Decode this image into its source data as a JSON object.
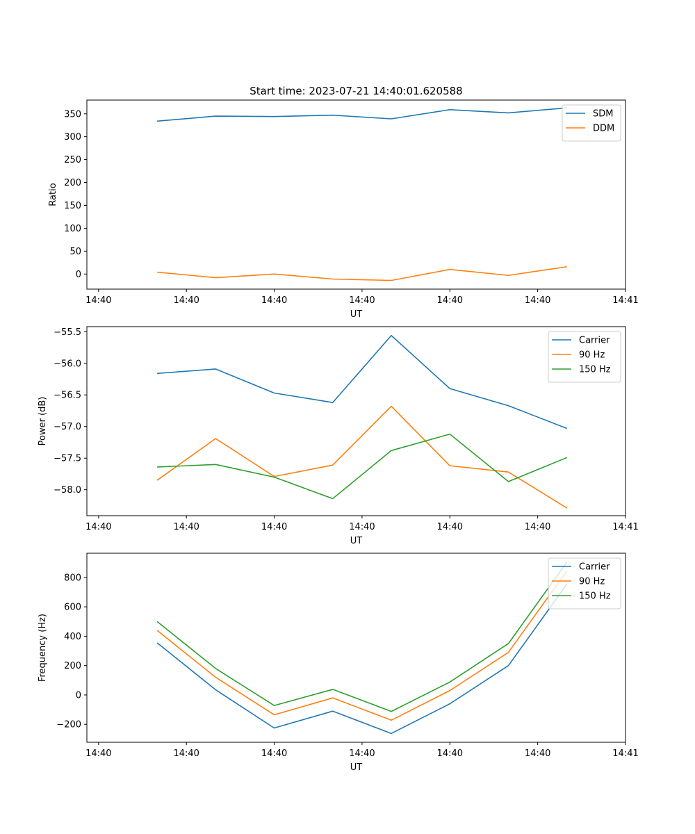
{
  "figure": {
    "title": "Start time: 2023-07-21 14:40:01.620588"
  },
  "chart_data": [
    {
      "type": "line",
      "title": "Start time: 2023-07-21 14:40:01.620588",
      "xlabel": "UT",
      "ylabel": "Ratio",
      "x": [
        1,
        2,
        3,
        4,
        5,
        6,
        7,
        8
      ],
      "x_ticks": [
        0,
        1.5,
        3,
        4.5,
        6,
        7.5,
        9
      ],
      "x_tick_labels": [
        "14:40",
        "14:40",
        "14:40",
        "14:40",
        "14:40",
        "14:40",
        "14:41"
      ],
      "xlim": [
        -0.2,
        9
      ],
      "ylim": [
        -33,
        380
      ],
      "y_ticks": [
        0,
        50,
        100,
        150,
        200,
        250,
        300,
        350
      ],
      "y_tick_labels": [
        "0",
        "50",
        "100",
        "150",
        "200",
        "250",
        "300",
        "350"
      ],
      "legend_position": "top-right",
      "series": [
        {
          "name": "SDM",
          "color": "#1f77b4",
          "values": [
            334,
            345,
            344,
            347,
            339,
            359,
            352,
            363
          ]
        },
        {
          "name": "DDM",
          "color": "#ff7f0e",
          "values": [
            4,
            -8,
            0,
            -11,
            -14,
            10,
            -3,
            16
          ]
        }
      ]
    },
    {
      "type": "line",
      "title": "",
      "xlabel": "UT",
      "ylabel": "Power (dB)",
      "x": [
        1,
        2,
        3,
        4,
        5,
        6,
        7,
        8
      ],
      "x_ticks": [
        0,
        1.5,
        3,
        4.5,
        6,
        7.5,
        9
      ],
      "x_tick_labels": [
        "14:40",
        "14:40",
        "14:40",
        "14:40",
        "14:40",
        "14:40",
        "14:41"
      ],
      "xlim": [
        -0.2,
        9
      ],
      "ylim": [
        -58.41,
        -55.42
      ],
      "y_ticks": [
        -58.0,
        -57.5,
        -57.0,
        -56.5,
        -56.0,
        -55.5
      ],
      "y_tick_labels": [
        "−58.0",
        "−57.5",
        "−57.0",
        "−56.5",
        "−56.0",
        "−55.5"
      ],
      "legend_position": "top-right",
      "series": [
        {
          "name": "Carrier",
          "color": "#1f77b4",
          "values": [
            -56.16,
            -56.09,
            -56.47,
            -56.62,
            -55.56,
            -56.4,
            -56.67,
            -57.03
          ]
        },
        {
          "name": "90 Hz",
          "color": "#ff7f0e",
          "values": [
            -57.85,
            -57.19,
            -57.79,
            -57.61,
            -56.68,
            -57.62,
            -57.72,
            -58.29
          ]
        },
        {
          "name": "150 Hz",
          "color": "#2ca02c",
          "values": [
            -57.64,
            -57.6,
            -57.8,
            -58.14,
            -57.38,
            -57.12,
            -57.87,
            -57.49
          ]
        }
      ]
    },
    {
      "type": "line",
      "title": "",
      "xlabel": "UT",
      "ylabel": "Frequency (Hz)",
      "x": [
        1,
        2,
        3,
        4,
        5,
        6,
        7,
        8
      ],
      "x_ticks": [
        0,
        1.5,
        3,
        4.5,
        6,
        7.5,
        9
      ],
      "x_tick_labels": [
        "14:40",
        "14:40",
        "14:40",
        "14:40",
        "14:40",
        "14:40",
        "14:41"
      ],
      "xlim": [
        -0.2,
        9
      ],
      "ylim": [
        -322,
        965
      ],
      "y_ticks": [
        -200,
        0,
        200,
        400,
        600,
        800
      ],
      "y_tick_labels": [
        "−200",
        "0",
        "200",
        "400",
        "600",
        "800"
      ],
      "legend_position": "top-right",
      "series": [
        {
          "name": "Carrier",
          "color": "#1f77b4",
          "values": [
            355,
            35,
            -225,
            -110,
            -262,
            -60,
            200,
            755
          ]
        },
        {
          "name": "90 Hz",
          "color": "#ff7f0e",
          "values": [
            440,
            120,
            -135,
            -20,
            -172,
            30,
            290,
            845
          ]
        },
        {
          "name": "150 Hz",
          "color": "#2ca02c",
          "values": [
            500,
            180,
            -72,
            38,
            -112,
            88,
            350,
            905
          ]
        }
      ]
    }
  ]
}
